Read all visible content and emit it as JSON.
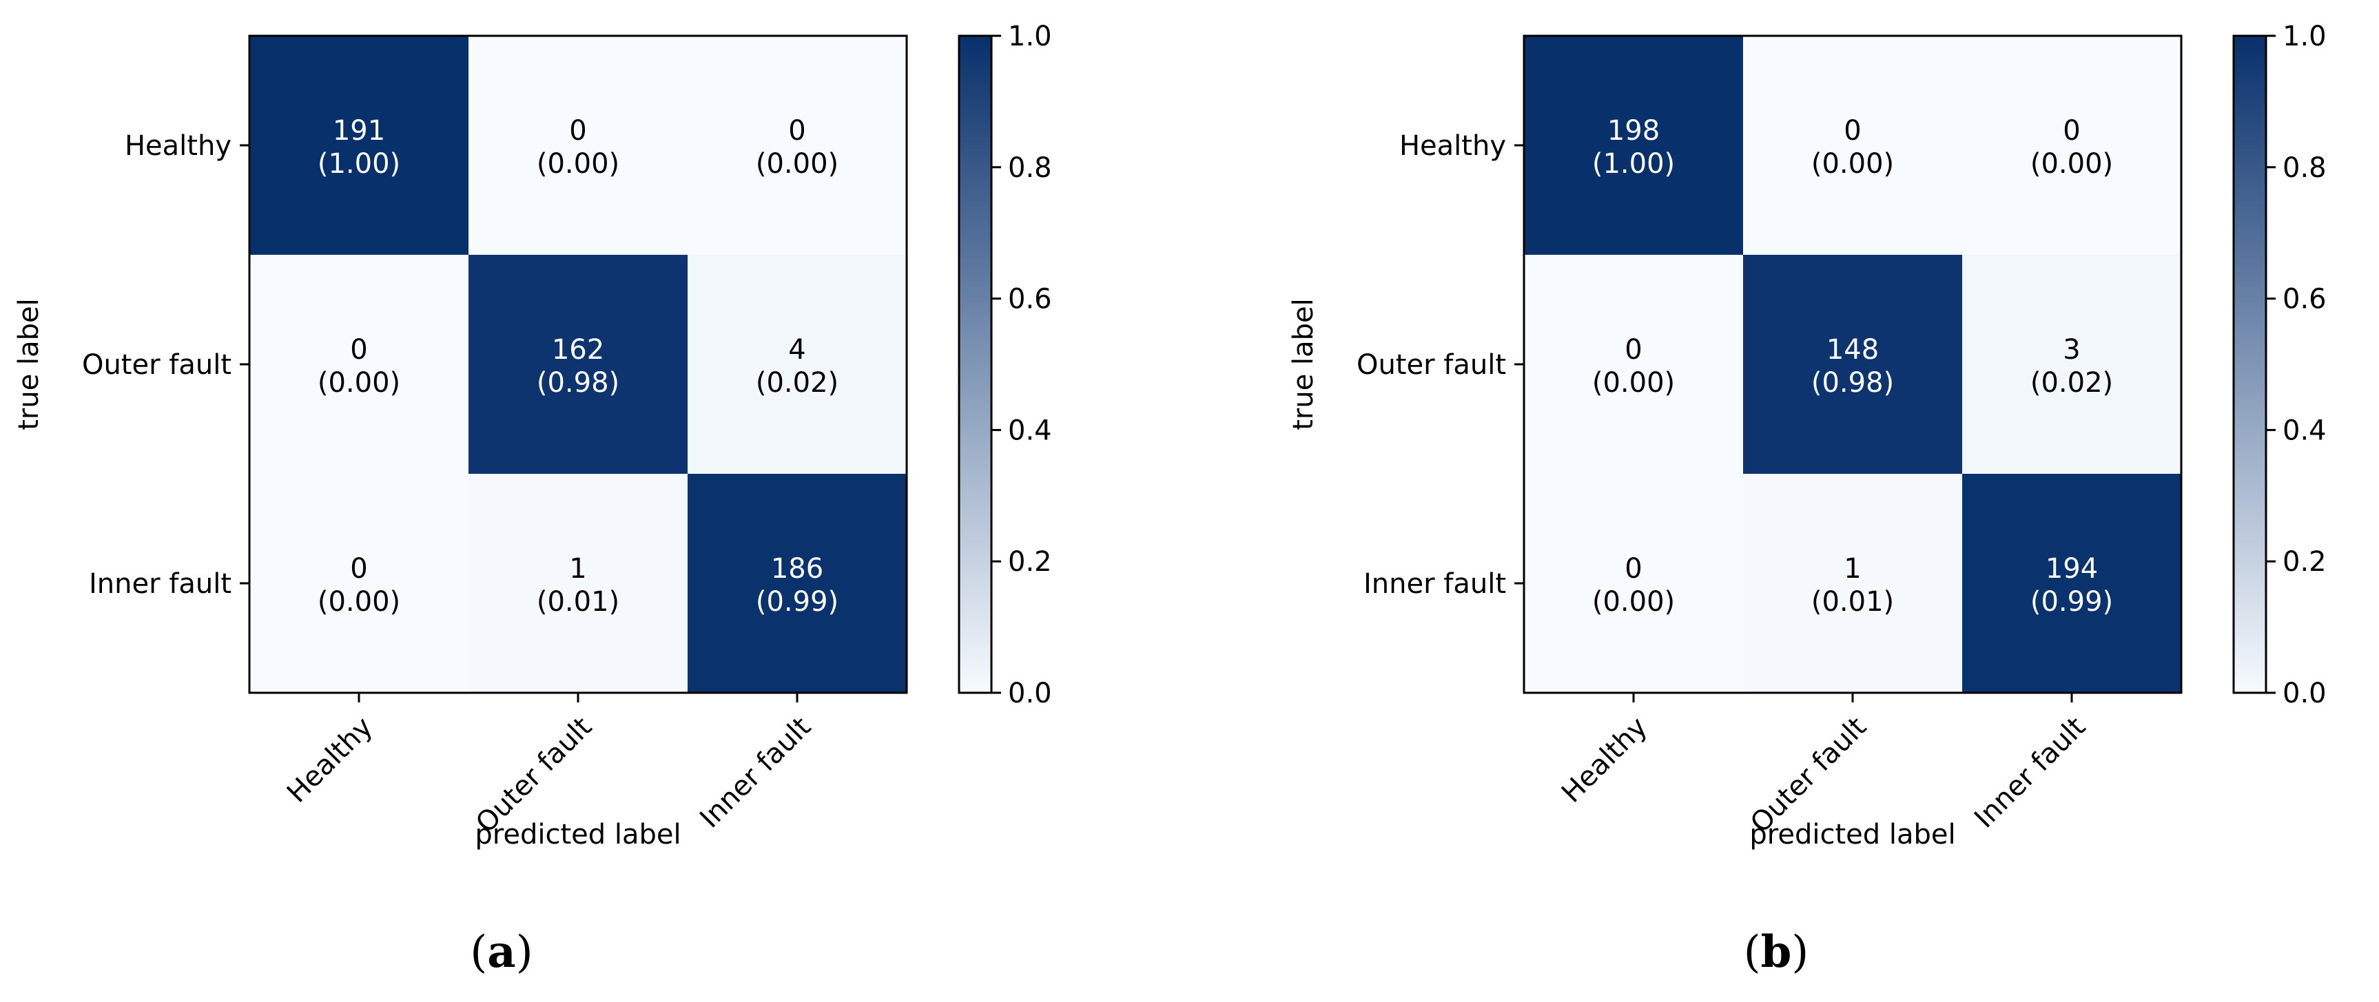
{
  "colors": {
    "low": "#f7fbff",
    "high": "#08306b",
    "colormap": "Blues",
    "text_dark": "#000000",
    "text_light": "#ffffff"
  },
  "chart_data": [
    {
      "type": "heatmap",
      "panel": "(a)",
      "panel_letter": "a",
      "title": "",
      "xlabel": "predicted label",
      "ylabel": "true label",
      "x_categories": [
        "Healthy",
        "Outer fault",
        "Inner fault"
      ],
      "y_categories": [
        "Healthy",
        "Outer fault",
        "Inner fault"
      ],
      "counts": [
        [
          191,
          0,
          0
        ],
        [
          0,
          162,
          4
        ],
        [
          0,
          1,
          186
        ]
      ],
      "normalized": [
        [
          1.0,
          0.0,
          0.0
        ],
        [
          0.0,
          0.98,
          0.02
        ],
        [
          0.0,
          0.01,
          0.99
        ]
      ],
      "colorbar": {
        "range": [
          0.0,
          1.0
        ],
        "ticks": [
          "0.0",
          "0.2",
          "0.4",
          "0.6",
          "0.8",
          "1.0"
        ]
      }
    },
    {
      "type": "heatmap",
      "panel": "(b)",
      "panel_letter": "b",
      "title": "",
      "xlabel": "predicted label",
      "ylabel": "true label",
      "x_categories": [
        "Healthy",
        "Outer fault",
        "Inner fault"
      ],
      "y_categories": [
        "Healthy",
        "Outer fault",
        "Inner fault"
      ],
      "counts": [
        [
          198,
          0,
          0
        ],
        [
          0,
          148,
          3
        ],
        [
          0,
          1,
          194
        ]
      ],
      "normalized": [
        [
          1.0,
          0.0,
          0.0
        ],
        [
          0.0,
          0.98,
          0.02
        ],
        [
          0.0,
          0.01,
          0.99
        ]
      ],
      "colorbar": {
        "range": [
          0.0,
          1.0
        ],
        "ticks": [
          "0.0",
          "0.2",
          "0.4",
          "0.6",
          "0.8",
          "1.0"
        ]
      }
    }
  ]
}
